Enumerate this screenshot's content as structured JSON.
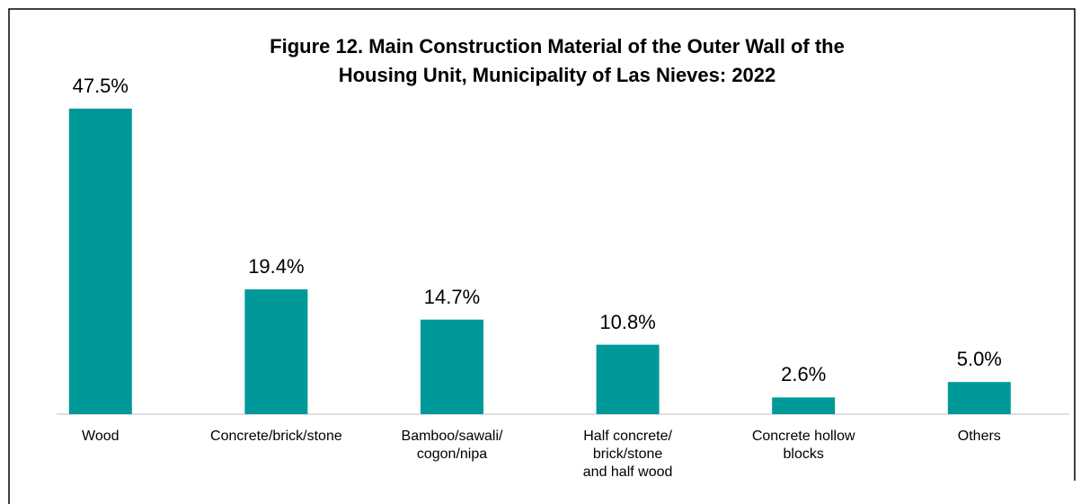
{
  "chart_data": {
    "type": "bar",
    "title": "Figure 12. Main Construction Material of the Outer Wall of the\nHousing Unit, Municipality of Las Nieves: 2022",
    "categories": [
      "Wood",
      "Concrete/brick/stone",
      "Bamboo/sawali/\ncogon/nipa",
      "Half concrete/\nbrick/stone\nand half wood",
      "Concrete hollow\nblocks",
      "Others"
    ],
    "values": [
      47.5,
      19.4,
      14.7,
      10.8,
      2.6,
      5.0
    ],
    "value_labels": [
      "47.5%",
      "19.4%",
      "14.7%",
      "10.8%",
      "2.6%",
      "5.0%"
    ],
    "color": "#009999"
  }
}
